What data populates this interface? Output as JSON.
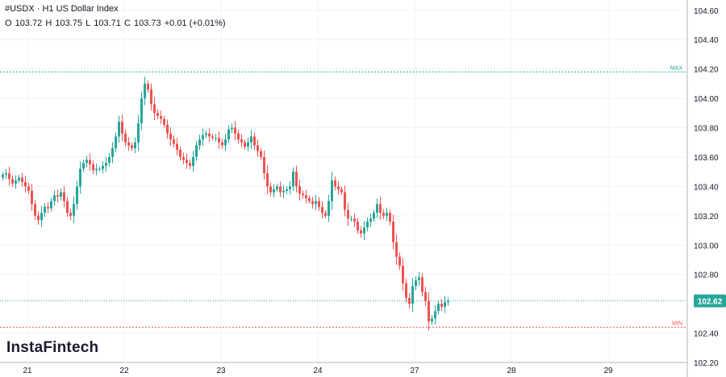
{
  "header": {
    "title": "#USDX · H1 US Dollar Index",
    "ohlc": {
      "o_label": "O",
      "o": "103.72",
      "h_label": "H",
      "h": "103.75",
      "l_label": "L",
      "l": "103.71",
      "c_label": "C",
      "c": "103.73",
      "change": "+0.01 (+0.01%)"
    }
  },
  "logo": "InstaFintech",
  "colors": {
    "up": "#26a69a",
    "down": "#ef5350",
    "max_line": "#26a69a",
    "min_line": "#ef5350",
    "last_price_bg": "#26a69a",
    "grid": "#f0f3fa",
    "axis_text": "#131722"
  },
  "chart_data": {
    "type": "candlestick",
    "symbol": "#USDX",
    "timeframe": "H1",
    "title": "US Dollar Index",
    "ylim": [
      102.2,
      104.67
    ],
    "y_ticks": [
      "104.60",
      "104.40",
      "104.20",
      "104.00",
      "103.80",
      "103.60",
      "103.40",
      "103.20",
      "103.00",
      "102.80",
      "102.40",
      "102.20"
    ],
    "x_ticks": [
      {
        "label": "21",
        "index": 8
      },
      {
        "label": "22",
        "index": 38
      },
      {
        "label": "23",
        "index": 68
      },
      {
        "label": "24",
        "index": 98
      },
      {
        "label": "27",
        "index": 128
      },
      {
        "label": "28",
        "index": 158
      },
      {
        "label": "29",
        "index": 188
      }
    ],
    "grid": true,
    "max_line": {
      "label": "MAX",
      "value": 104.18
    },
    "min_line": {
      "label": "MIN",
      "value": 102.44
    },
    "last_price": {
      "label": "102.62",
      "value": 102.62
    },
    "closes": [
      103.48,
      103.49,
      103.45,
      103.42,
      103.44,
      103.46,
      103.43,
      103.4,
      103.37,
      103.28,
      103.2,
      103.17,
      103.22,
      103.26,
      103.25,
      103.3,
      103.34,
      103.33,
      103.36,
      103.3,
      103.22,
      103.2,
      103.28,
      103.4,
      103.52,
      103.56,
      103.58,
      103.55,
      103.51,
      103.52,
      103.52,
      103.54,
      103.56,
      103.6,
      103.66,
      103.74,
      103.84,
      103.76,
      103.7,
      103.68,
      103.66,
      103.7,
      103.83,
      104.0,
      104.1,
      104.06,
      103.96,
      103.9,
      103.88,
      103.86,
      103.82,
      103.76,
      103.72,
      103.69,
      103.65,
      103.6,
      103.58,
      103.56,
      103.54,
      103.6,
      103.68,
      103.72,
      103.75,
      103.76,
      103.74,
      103.73,
      103.73,
      103.7,
      103.68,
      103.72,
      103.79,
      103.8,
      103.76,
      103.72,
      103.7,
      103.67,
      103.7,
      103.74,
      103.68,
      103.64,
      103.6,
      103.49,
      103.4,
      103.36,
      103.38,
      103.4,
      103.36,
      103.37,
      103.38,
      103.4,
      103.5,
      103.4,
      103.35,
      103.34,
      103.32,
      103.3,
      103.28,
      103.3,
      103.26,
      103.22,
      103.2,
      103.3,
      103.44,
      103.4,
      103.38,
      103.36,
      103.24,
      103.18,
      103.18,
      103.16,
      103.1,
      103.08,
      103.12,
      103.16,
      103.18,
      103.22,
      103.28,
      103.22,
      103.2,
      103.22,
      103.16,
      103.02,
      102.92,
      102.86,
      102.74,
      102.64,
      102.6,
      102.72,
      102.76,
      102.78,
      102.68,
      102.62,
      102.48,
      102.5,
      102.55,
      102.6,
      102.58,
      102.61,
      102.62
    ]
  }
}
